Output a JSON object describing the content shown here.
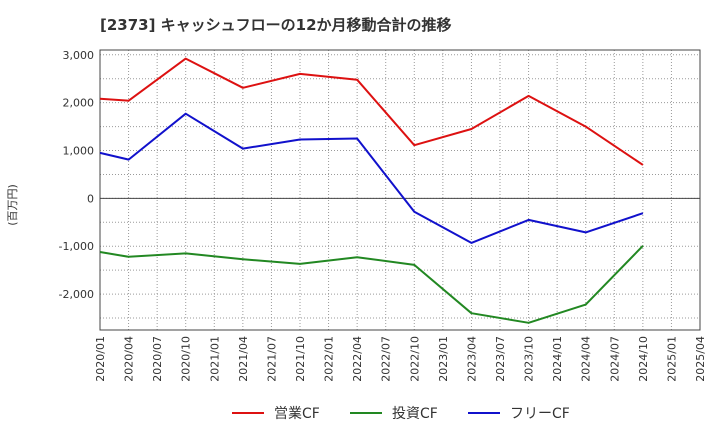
{
  "chart_data": {
    "type": "line",
    "title": "[2373]  キャッシュフローの12か月移動合計の推移",
    "ylabel": "(百万円)",
    "xlabel": "",
    "ylim": [
      -2750,
      3100
    ],
    "y_ticks": [
      3000,
      2000,
      1000,
      0,
      -1000,
      -2000
    ],
    "y_tick_labels": [
      "3,000",
      "2,000",
      "1,000",
      "0",
      "-1,000",
      "-2,000"
    ],
    "categories": [
      "2020/01",
      "2020/04",
      "2020/07",
      "2020/10",
      "2021/01",
      "2021/04",
      "2021/07",
      "2021/10",
      "2022/01",
      "2022/04",
      "2022/07",
      "2022/10",
      "2023/01",
      "2023/04",
      "2023/07",
      "2023/10",
      "2024/01",
      "2024/04",
      "2024/07",
      "2024/10",
      "2025/01",
      "2025/04"
    ],
    "series": [
      {
        "name": "営業CF",
        "color": "#dd1111",
        "values": [
          2080,
          2040,
          null,
          2920,
          null,
          2310,
          null,
          2600,
          null,
          2480,
          null,
          1110,
          null,
          1450,
          null,
          2140,
          null,
          1500,
          null,
          700,
          null,
          null
        ]
      },
      {
        "name": "投資CF",
        "color": "#228822",
        "values": [
          -1120,
          -1220,
          null,
          -1150,
          null,
          -1270,
          null,
          -1370,
          null,
          -1230,
          null,
          -1390,
          null,
          -2400,
          null,
          -2600,
          null,
          -2220,
          null,
          -990,
          null,
          null
        ]
      },
      {
        "name": "フリーCF",
        "color": "#1111cc",
        "values": [
          950,
          810,
          null,
          1770,
          null,
          1040,
          null,
          1230,
          null,
          1250,
          null,
          -280,
          null,
          -930,
          null,
          -450,
          null,
          -710,
          null,
          -310,
          null,
          null
        ]
      }
    ]
  }
}
